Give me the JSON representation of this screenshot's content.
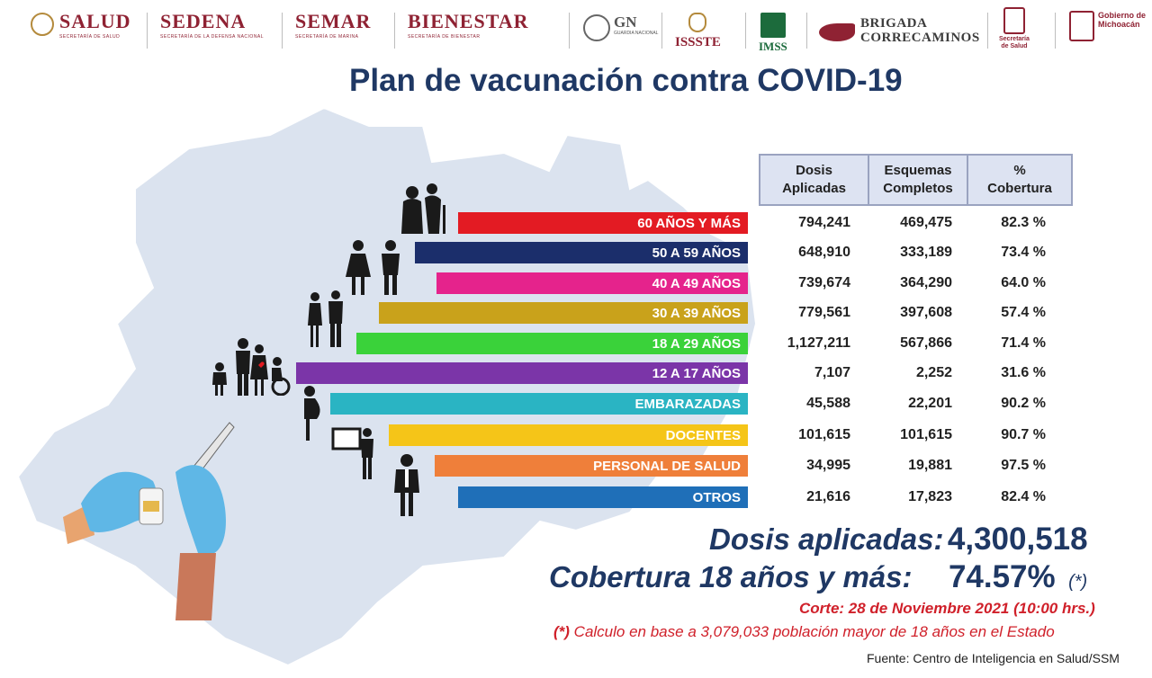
{
  "header": {
    "salud": {
      "name": "SALUD",
      "sub": "SECRETARÍA DE SALUD"
    },
    "sedena": {
      "name": "SEDENA",
      "sub": "SECRETARÍA DE LA DEFENSA NACIONAL"
    },
    "semar": {
      "name": "SEMAR",
      "sub": "SECRETARÍA DE MARINA"
    },
    "bienestar": {
      "name": "BIENESTAR",
      "sub": "SECRETARÍA DE BIENESTAR"
    },
    "gn": {
      "name": "GN",
      "sub": "GUARDIA NACIONAL"
    },
    "issste": "ISSSTE",
    "imss": "IMSS",
    "brigada": {
      "line1": "BRIGADA",
      "line2": "CORRECAMINOS"
    },
    "ssm": {
      "line1": "Secretaría",
      "line2": "de Salud"
    },
    "gobierno": {
      "line1": "Gobierno de",
      "line2": "Michoacán"
    }
  },
  "title": "Plan de vacunación contra COVID-19",
  "table": {
    "headers": [
      {
        "line1": "Dosis",
        "line2": "Aplicadas"
      },
      {
        "line1": "Esquemas",
        "line2": "Completos"
      },
      {
        "line1": "%",
        "line2": "Cobertura"
      }
    ],
    "rows": [
      {
        "label": "60 AÑOS Y MÁS",
        "dosis": "794,241",
        "esquemas": "469,475",
        "cobertura": "82.3 %",
        "color": "#e31b23"
      },
      {
        "label": "50 A 59 AÑOS",
        "dosis": "648,910",
        "esquemas": "333,189",
        "cobertura": "73.4 %",
        "color": "#1b2e6b"
      },
      {
        "label": "40 A 49 AÑOS",
        "dosis": "739,674",
        "esquemas": "364,290",
        "cobertura": "64.0 %",
        "color": "#e5238c"
      },
      {
        "label": "30 A 39 AÑOS",
        "dosis": "779,561",
        "esquemas": "397,608",
        "cobertura": "57.4 %",
        "color": "#c9a21b"
      },
      {
        "label": "18 A 29 AÑOS",
        "dosis": "1,127,211",
        "esquemas": "567,866",
        "cobertura": "71.4 %",
        "color": "#3ad23a"
      },
      {
        "label": "12 A 17 AÑOS",
        "dosis": "7,107",
        "esquemas": "2,252",
        "cobertura": "31.6 %",
        "color": "#7b35a8"
      },
      {
        "label": "EMBARAZADAS",
        "dosis": "45,588",
        "esquemas": "22,201",
        "cobertura": "90.2 %",
        "color": "#2ab4c3"
      },
      {
        "label": "DOCENTES",
        "dosis": "101,615",
        "esquemas": "101,615",
        "cobertura": "90.7 %",
        "color": "#f5c518"
      },
      {
        "label": "PERSONAL DE SALUD",
        "dosis": "34,995",
        "esquemas": "19,881",
        "cobertura": "97.5 %",
        "color": "#ef7f3a"
      },
      {
        "label": "OTROS",
        "dosis": "21,616",
        "esquemas": "17,823",
        "cobertura": "82.4 %",
        "color": "#1f6fb8"
      }
    ]
  },
  "totals": {
    "dosis_label": "Dosis aplicadas:",
    "dosis_value": "4,300,518",
    "cobertura_label": "Cobertura 18 años y más:",
    "cobertura_value": "74.57%",
    "cobertura_mark": "(*)"
  },
  "corte": "Corte: 28 de Noviembre 2021 (10:00 hrs.)",
  "nota": {
    "mark": "(*)",
    "text": " Calculo en base a 3,079,033 población mayor de 18 años en el Estado"
  },
  "fuente": "Fuente: Centro de Inteligencia en Salud/SSM",
  "colors": {
    "title": "#1f3864",
    "map": "#dbe3ef",
    "accent_red": "#d0202a",
    "brand": "#8f2233"
  }
}
